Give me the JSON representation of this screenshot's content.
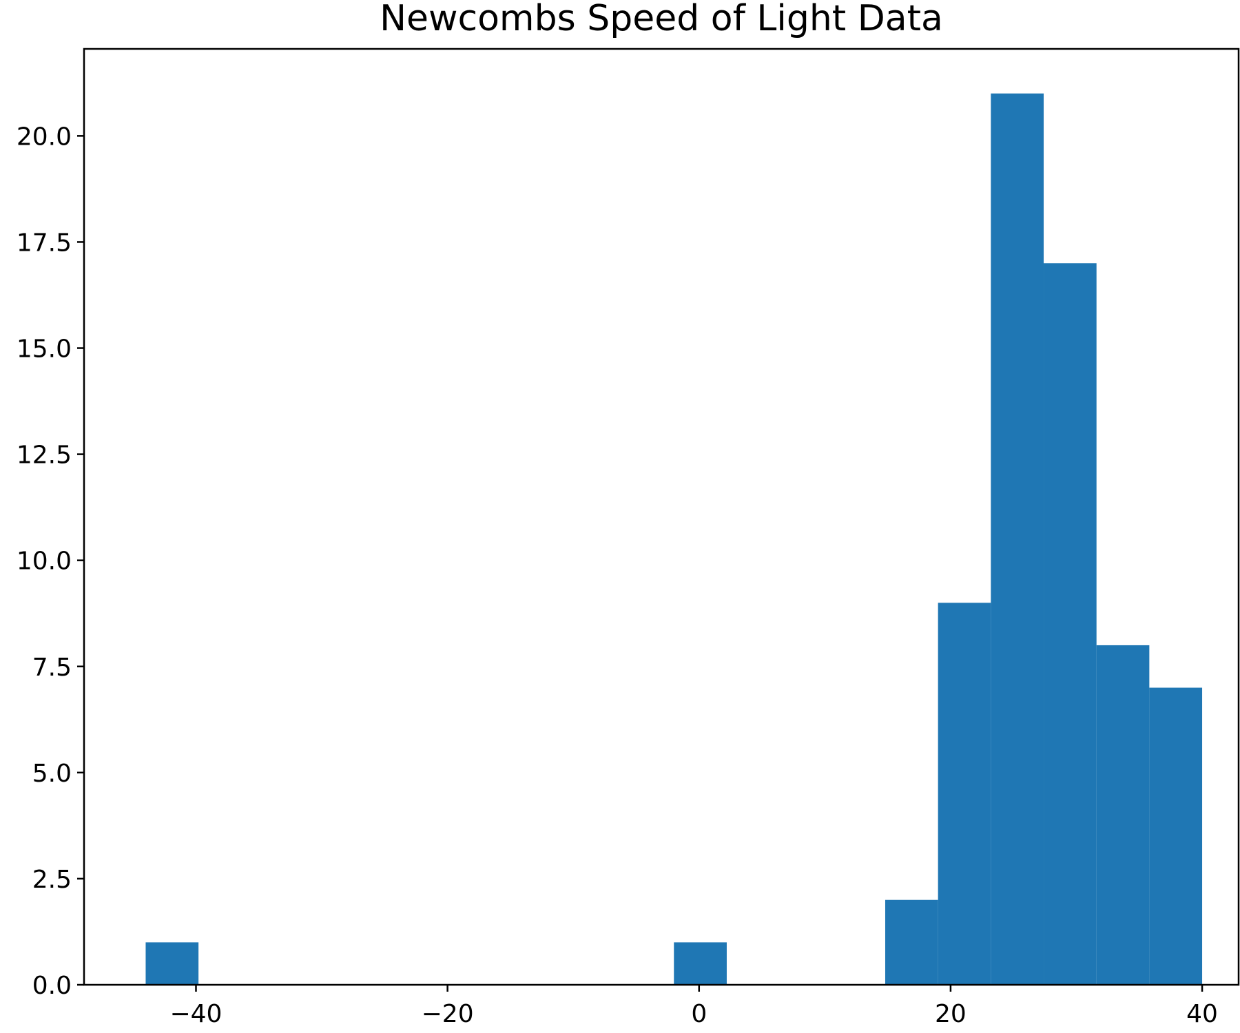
{
  "chart_data": {
    "type": "bar",
    "title": "Newcombs Speed of Light Data",
    "xlabel": "",
    "ylabel": "",
    "xlim": [
      -48.9,
      42.9
    ],
    "ylim": [
      0,
      22.05
    ],
    "bin_edges": [
      -44,
      -39.8,
      -35.6,
      -31.4,
      -27.2,
      -23,
      -18.8,
      -14.6,
      -10.4,
      -6.2,
      -2,
      2.2,
      6.4,
      10.6,
      14.8,
      19,
      23.2,
      27.4,
      31.6,
      35.8,
      40
    ],
    "counts": [
      1,
      0,
      0,
      0,
      0,
      0,
      0,
      0,
      0,
      0,
      1,
      0,
      0,
      0,
      2,
      9,
      21,
      17,
      8,
      7
    ],
    "bar_color": "#1f77b4",
    "x_ticks": [
      -40,
      -20,
      0,
      20,
      40
    ],
    "x_tick_labels": [
      "−40",
      "−20",
      "0",
      "20",
      "40"
    ],
    "y_ticks": [
      0,
      2.5,
      5,
      7.5,
      10,
      12.5,
      15,
      17.5,
      20
    ],
    "y_tick_labels": [
      "0.0",
      "2.5",
      "5.0",
      "7.5",
      "10.0",
      "12.5",
      "15.0",
      "17.5",
      "20.0"
    ],
    "grid": false,
    "legend": "none"
  }
}
